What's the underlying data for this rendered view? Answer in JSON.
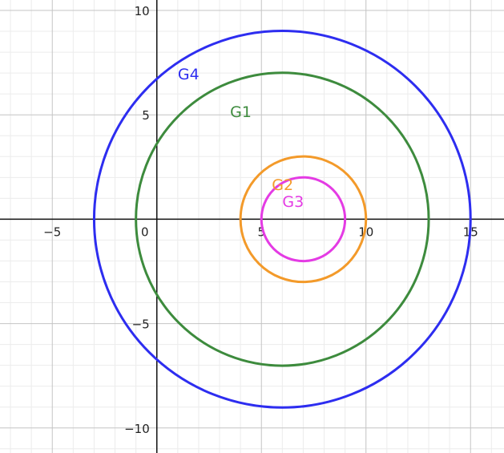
{
  "chart_data": {
    "type": "scatter",
    "title": "",
    "xlabel": "",
    "ylabel": "",
    "xlim": [
      -7.5,
      16.6
    ],
    "ylim": [
      -11.2,
      10.5
    ],
    "grid": true,
    "minor_grid_step": 1,
    "major_grid_step": 5,
    "x_ticks": [
      {
        "value": -5,
        "label": "−5"
      },
      {
        "value": 0,
        "label": "0"
      },
      {
        "value": 5,
        "label": "5"
      },
      {
        "value": 10,
        "label": "10"
      },
      {
        "value": 15,
        "label": "15"
      }
    ],
    "y_ticks": [
      {
        "value": 10,
        "label": "10"
      },
      {
        "value": 5,
        "label": "5"
      },
      {
        "value": -5,
        "label": "−5"
      },
      {
        "value": -10,
        "label": "−10"
      }
    ],
    "series": [
      {
        "name": "G4",
        "center": [
          6,
          0
        ],
        "radius": 9,
        "color": "#2d2df0",
        "label_at": [
          1,
          6.7
        ]
      },
      {
        "name": "G1",
        "center": [
          6,
          0
        ],
        "radius": 7,
        "color": "#3d8b3d",
        "label_at": [
          3.5,
          4.9
        ]
      },
      {
        "name": "G2",
        "center": [
          7,
          0
        ],
        "radius": 3,
        "color": "#f39a2a",
        "label_at": [
          5.5,
          1.4
        ]
      },
      {
        "name": "G3",
        "center": [
          7,
          0
        ],
        "radius": 2,
        "color": "#e43be4",
        "label_at": [
          6.0,
          0.6
        ]
      }
    ]
  }
}
